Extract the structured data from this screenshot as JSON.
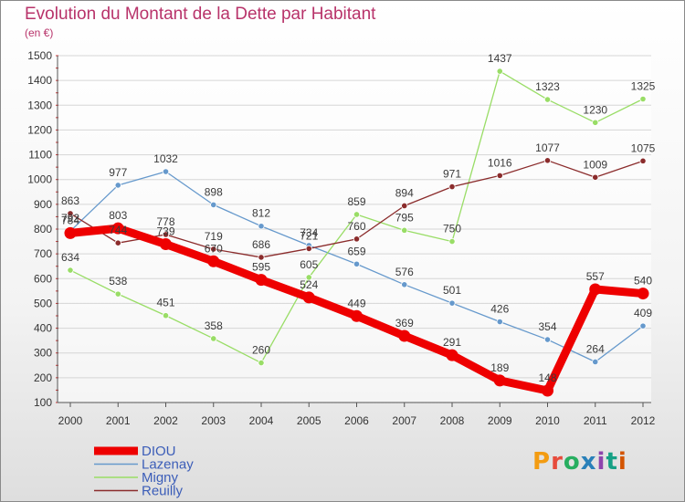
{
  "title": "Evolution du Montant de la Dette par Habitant",
  "unit": "(en €)",
  "logo": {
    "text": "Proxiti",
    "colors": [
      "#f39c12",
      "#e74c3c",
      "#27ae60",
      "#2980b9",
      "#8e44ad",
      "#16a085",
      "#d35400"
    ]
  },
  "chart_data": {
    "type": "line",
    "title": "Evolution du Montant de la Dette par Habitant",
    "ylabel": "(en €)",
    "xlabel": "",
    "x": [
      "2000",
      "2001",
      "2002",
      "2003",
      "2004",
      "2005",
      "2006",
      "2007",
      "2008",
      "2009",
      "2010",
      "2011",
      "2012"
    ],
    "ylim": [
      100,
      1500
    ],
    "yticks": [
      100,
      200,
      300,
      400,
      500,
      600,
      700,
      800,
      900,
      1000,
      1100,
      1200,
      1300,
      1400,
      1500
    ],
    "grid": "horizontal",
    "legend": "bottom-left",
    "series": [
      {
        "name": "DIOU",
        "color": "#ee0000",
        "values": [
          784,
          803,
          739,
          670,
          595,
          524,
          449,
          369,
          291,
          189,
          148,
          557,
          540
        ],
        "labels": [
          "784",
          "803",
          "739",
          "670",
          "595",
          "524",
          "449",
          "369",
          "291",
          "189",
          "148",
          "557",
          "540"
        ]
      },
      {
        "name": "Lazenay",
        "color": "#6699cc",
        "values": [
          792,
          977,
          1032,
          898,
          812,
          734,
          659,
          576,
          501,
          426,
          354,
          264,
          409
        ],
        "labels": [
          "792",
          "977",
          "1032",
          "898",
          "812",
          "734",
          "659",
          "576",
          "501",
          "426",
          "354",
          "264",
          "409"
        ]
      },
      {
        "name": "Migny",
        "color": "#99dd66",
        "values": [
          634,
          538,
          451,
          358,
          260,
          605,
          859,
          795,
          750,
          1437,
          1323,
          1230,
          1325
        ],
        "labels": [
          "634",
          "538",
          "451",
          "358",
          "260",
          "605",
          "859",
          "795",
          "750",
          "1437",
          "1323",
          "1230",
          "1325"
        ]
      },
      {
        "name": "Reuilly",
        "color": "#8b2c2c",
        "values": [
          863,
          744,
          778,
          719,
          686,
          721,
          760,
          894,
          971,
          1016,
          1077,
          1009,
          1075
        ],
        "labels": [
          "863",
          "744",
          "778",
          "719",
          "686",
          "721",
          "760",
          "894",
          "971",
          "1016",
          "1077",
          "1009",
          "1075"
        ]
      }
    ]
  }
}
